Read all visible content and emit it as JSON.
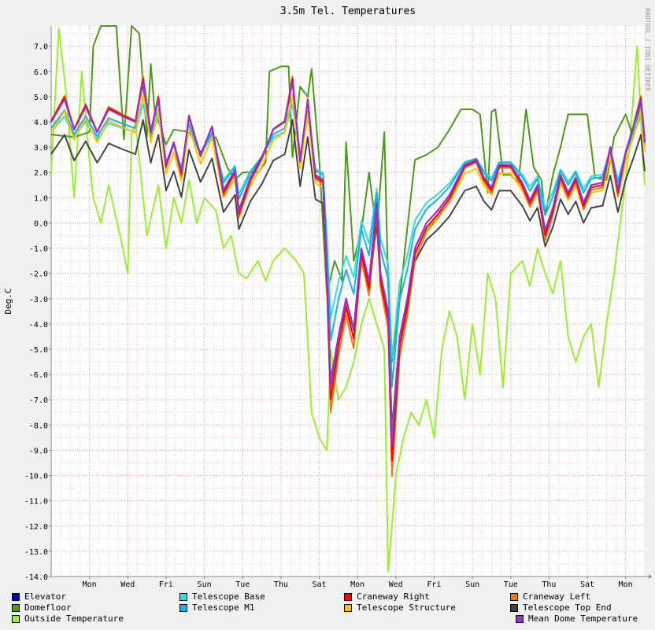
{
  "chart_data": {
    "type": "line",
    "title": "3.5m Tel. Temperatures",
    "ylabel": "Deg.C",
    "side_label": "RRDTOOL / TOBI OETIKER",
    "ylim": [
      -14.0,
      7.8
    ],
    "yticks": [
      "7.0",
      "6.0",
      "5.0",
      "4.0",
      "3.0",
      "2.0",
      "1.0",
      "0.0",
      "-1.0",
      "-2.0",
      "-3.0",
      "-4.0",
      "-5.0",
      "-6.0",
      "-7.0",
      "-8.0",
      "-9.0",
      "-10.0",
      "-11.0",
      "-12.0",
      "-13.0",
      "-14.0"
    ],
    "xlim": [
      0,
      15.5
    ],
    "xticks": [
      {
        "x": 1,
        "label": "Mon"
      },
      {
        "x": 2,
        "label": "Wed"
      },
      {
        "x": 3,
        "label": "Fri"
      },
      {
        "x": 4,
        "label": "Sun"
      },
      {
        "x": 5,
        "label": "Tue"
      },
      {
        "x": 6,
        "label": "Thu"
      },
      {
        "x": 7,
        "label": "Sat"
      },
      {
        "x": 8,
        "label": "Mon"
      },
      {
        "x": 9,
        "label": "Wed"
      },
      {
        "x": 10,
        "label": "Fri"
      },
      {
        "x": 11,
        "label": "Sun"
      },
      {
        "x": 12,
        "label": "Tue"
      },
      {
        "x": 13,
        "label": "Thu"
      },
      {
        "x": 14,
        "label": "Sat"
      },
      {
        "x": 15,
        "label": "Mon"
      }
    ],
    "grid": true,
    "legend_position": "bottom",
    "series": [
      {
        "name": "Elevator",
        "color": "#0000cc",
        "offset": -0.05,
        "amp": 1.0,
        "values": [
          [
            0,
            4.0
          ],
          [
            0.35,
            4.9
          ],
          [
            0.6,
            3.7
          ],
          [
            0.9,
            4.6
          ],
          [
            1.2,
            3.6
          ],
          [
            1.5,
            4.5
          ],
          [
            1.9,
            4.2
          ],
          [
            2.2,
            4.0
          ],
          [
            2.4,
            5.6
          ],
          [
            2.6,
            3.6
          ],
          [
            2.8,
            4.9
          ],
          [
            3.0,
            2.3
          ],
          [
            3.2,
            3.2
          ],
          [
            3.4,
            2.0
          ],
          [
            3.6,
            4.2
          ],
          [
            3.9,
            2.7
          ],
          [
            4.2,
            3.8
          ],
          [
            4.5,
            1.3
          ],
          [
            4.8,
            2.1
          ],
          [
            4.9,
            0.5
          ],
          [
            5.2,
            1.8
          ],
          [
            5.5,
            2.6
          ],
          [
            5.8,
            3.7
          ],
          [
            6.1,
            4.0
          ],
          [
            6.3,
            5.6
          ],
          [
            6.5,
            2.5
          ],
          [
            6.7,
            4.8
          ],
          [
            6.9,
            1.9
          ],
          [
            7.1,
            1.7
          ],
          [
            7.2,
            -2.0
          ],
          [
            7.3,
            -6.5
          ],
          [
            7.5,
            -4.5
          ],
          [
            7.7,
            -3.0
          ],
          [
            7.9,
            -4.2
          ],
          [
            8.1,
            -1.0
          ],
          [
            8.3,
            -2.3
          ],
          [
            8.5,
            0.8
          ],
          [
            8.6,
            -2.0
          ],
          [
            8.8,
            -3.5
          ],
          [
            8.9,
            -8.8
          ],
          [
            9.1,
            -4.5
          ],
          [
            9.3,
            -3.0
          ],
          [
            9.5,
            -1.0
          ],
          [
            9.8,
            0.0
          ],
          [
            10.1,
            0.5
          ],
          [
            10.4,
            1.1
          ],
          [
            10.8,
            2.3
          ],
          [
            11.1,
            2.5
          ],
          [
            11.3,
            1.8
          ],
          [
            11.5,
            1.4
          ],
          [
            11.7,
            2.3
          ],
          [
            12.0,
            2.3
          ],
          [
            12.3,
            1.6
          ],
          [
            12.5,
            0.9
          ],
          [
            12.7,
            1.5
          ],
          [
            12.9,
            -0.3
          ],
          [
            13.1,
            0.6
          ],
          [
            13.3,
            1.9
          ],
          [
            13.5,
            1.2
          ],
          [
            13.7,
            1.8
          ],
          [
            13.9,
            0.8
          ],
          [
            14.1,
            1.5
          ],
          [
            14.4,
            1.6
          ],
          [
            14.6,
            3.0
          ],
          [
            14.8,
            1.3
          ],
          [
            15.0,
            2.8
          ],
          [
            15.2,
            3.8
          ],
          [
            15.4,
            4.9
          ],
          [
            15.6,
            3.2
          ]
        ]
      },
      {
        "name": "Telescope Base",
        "color": "#33dddd",
        "offset": 0.35,
        "amp": 0.7
      },
      {
        "name": "Craneway Right",
        "color": "#ff0000",
        "offset": -0.1,
        "amp": 1.05
      },
      {
        "name": "Craneway Left",
        "color": "#e87a17",
        "offset": -0.2,
        "amp": 1.1
      },
      {
        "name": "Domefloor",
        "color": "#4c9a1a",
        "values": [
          [
            0,
            3.5
          ],
          [
            0.6,
            3.4
          ],
          [
            1.0,
            3.6
          ],
          [
            1.1,
            7.0
          ],
          [
            1.3,
            7.8
          ],
          [
            1.7,
            7.8
          ],
          [
            1.9,
            3.3
          ],
          [
            2.1,
            7.8
          ],
          [
            2.3,
            7.5
          ],
          [
            2.5,
            3.4
          ],
          [
            2.6,
            6.3
          ],
          [
            2.7,
            4.5
          ],
          [
            3.0,
            3.1
          ],
          [
            3.2,
            3.7
          ],
          [
            3.6,
            3.6
          ],
          [
            3.9,
            2.8
          ],
          [
            4.1,
            3.2
          ],
          [
            4.3,
            3.4
          ],
          [
            4.6,
            2.2
          ],
          [
            4.8,
            1.7
          ],
          [
            5.0,
            2.0
          ],
          [
            5.4,
            2.0
          ],
          [
            5.6,
            2.4
          ],
          [
            5.7,
            6.0
          ],
          [
            6.0,
            6.2
          ],
          [
            6.2,
            6.2
          ],
          [
            6.3,
            2.6
          ],
          [
            6.5,
            5.4
          ],
          [
            6.7,
            5.0
          ],
          [
            6.8,
            6.1
          ],
          [
            7.0,
            2.5
          ],
          [
            7.2,
            -2.8
          ],
          [
            7.4,
            -1.5
          ],
          [
            7.6,
            -2.3
          ],
          [
            7.7,
            3.2
          ],
          [
            7.9,
            -1.5
          ],
          [
            8.1,
            -0.3
          ],
          [
            8.3,
            2.0
          ],
          [
            8.5,
            -0.4
          ],
          [
            8.7,
            3.6
          ],
          [
            8.8,
            -2.5
          ],
          [
            8.9,
            -5.5
          ],
          [
            9.1,
            -3.0
          ],
          [
            9.3,
            -0.2
          ],
          [
            9.5,
            2.5
          ],
          [
            9.8,
            2.7
          ],
          [
            10.1,
            3.0
          ],
          [
            10.4,
            3.7
          ],
          [
            10.7,
            4.5
          ],
          [
            11.0,
            4.5
          ],
          [
            11.2,
            4.3
          ],
          [
            11.4,
            1.2
          ],
          [
            11.5,
            4.4
          ],
          [
            11.6,
            4.5
          ],
          [
            11.8,
            1.9
          ],
          [
            12.0,
            1.9
          ],
          [
            12.2,
            1.6
          ],
          [
            12.4,
            4.5
          ],
          [
            12.6,
            2.2
          ],
          [
            12.8,
            1.7
          ],
          [
            12.9,
            0.3
          ],
          [
            13.1,
            1.9
          ],
          [
            13.3,
            3.0
          ],
          [
            13.5,
            4.3
          ],
          [
            13.8,
            4.3
          ],
          [
            14.0,
            4.3
          ],
          [
            14.2,
            1.8
          ],
          [
            14.5,
            1.7
          ],
          [
            14.7,
            3.4
          ],
          [
            15.0,
            4.3
          ],
          [
            15.2,
            3.4
          ],
          [
            15.4,
            4.8
          ],
          [
            15.6,
            3.4
          ]
        ]
      },
      {
        "name": "Telescope M1",
        "color": "#1ab0e8",
        "offset": 0.25,
        "amp": 0.8
      },
      {
        "name": "Telescope Structure",
        "color": "#ffc000",
        "offset": -0.3,
        "amp": 0.95
      },
      {
        "name": "Telescope Top End",
        "color": "#444444",
        "offset": -0.9,
        "amp": 0.85
      },
      {
        "name": "Outside Temperature",
        "color": "#99ee33",
        "values": [
          [
            0,
            2.0
          ],
          [
            0.2,
            7.7
          ],
          [
            0.4,
            5.0
          ],
          [
            0.6,
            1.0
          ],
          [
            0.8,
            6.0
          ],
          [
            1.0,
            2.5
          ],
          [
            1.1,
            1.0
          ],
          [
            1.3,
            0.0
          ],
          [
            1.5,
            1.5
          ],
          [
            1.8,
            -0.5
          ],
          [
            2.0,
            -2.0
          ],
          [
            2.1,
            3.5
          ],
          [
            2.2,
            4.0
          ],
          [
            2.5,
            -0.5
          ],
          [
            2.8,
            1.5
          ],
          [
            3.0,
            -1.0
          ],
          [
            3.2,
            1.0
          ],
          [
            3.4,
            0.0
          ],
          [
            3.6,
            1.7
          ],
          [
            3.8,
            0.0
          ],
          [
            4.0,
            1.0
          ],
          [
            4.3,
            0.5
          ],
          [
            4.5,
            -1.0
          ],
          [
            4.7,
            -0.5
          ],
          [
            4.9,
            -2.0
          ],
          [
            5.1,
            -2.2
          ],
          [
            5.4,
            -1.5
          ],
          [
            5.6,
            -2.3
          ],
          [
            5.8,
            -1.5
          ],
          [
            6.1,
            -1.0
          ],
          [
            6.4,
            -1.5
          ],
          [
            6.6,
            -2.0
          ],
          [
            6.8,
            -7.5
          ],
          [
            7.0,
            -8.5
          ],
          [
            7.2,
            -9.0
          ],
          [
            7.3,
            -5.0
          ],
          [
            7.5,
            -7.0
          ],
          [
            7.7,
            -6.5
          ],
          [
            7.9,
            -5.5
          ],
          [
            8.1,
            -4.0
          ],
          [
            8.3,
            -3.0
          ],
          [
            8.5,
            -4.0
          ],
          [
            8.7,
            -5.0
          ],
          [
            8.8,
            -13.8
          ],
          [
            8.9,
            -12.0
          ],
          [
            9.0,
            -10.0
          ],
          [
            9.2,
            -8.5
          ],
          [
            9.4,
            -7.5
          ],
          [
            9.6,
            -8.0
          ],
          [
            9.8,
            -7.0
          ],
          [
            10.0,
            -8.5
          ],
          [
            10.2,
            -5.0
          ],
          [
            10.4,
            -3.5
          ],
          [
            10.6,
            -4.5
          ],
          [
            10.8,
            -7.0
          ],
          [
            11.0,
            -4.0
          ],
          [
            11.2,
            -6.0
          ],
          [
            11.4,
            -2.0
          ],
          [
            11.6,
            -3.0
          ],
          [
            11.8,
            -6.5
          ],
          [
            12.0,
            -2.0
          ],
          [
            12.3,
            -1.5
          ],
          [
            12.5,
            -2.5
          ],
          [
            12.7,
            -1.0
          ],
          [
            12.9,
            -2.0
          ],
          [
            13.1,
            -2.8
          ],
          [
            13.3,
            -1.5
          ],
          [
            13.5,
            -4.5
          ],
          [
            13.7,
            -5.5
          ],
          [
            13.9,
            -4.5
          ],
          [
            14.1,
            -4.0
          ],
          [
            14.3,
            -6.5
          ],
          [
            14.5,
            -4.0
          ],
          [
            14.7,
            -2.0
          ],
          [
            14.9,
            0.5
          ],
          [
            15.1,
            3.0
          ],
          [
            15.3,
            7.0
          ],
          [
            15.45,
            2.5
          ],
          [
            15.6,
            1.5
          ]
        ]
      },
      {
        "name": "Mean Dome Temperature",
        "color": "#9933cc",
        "offset": 0.0,
        "amp": 1.0
      }
    ]
  },
  "legend": [
    {
      "label": "Elevator",
      "color": "#0000cc"
    },
    {
      "label": "Telescope Base",
      "color": "#33dddd"
    },
    {
      "label": "Craneway Right",
      "color": "#ff0000"
    },
    {
      "label": "Craneway Left",
      "color": "#e87a17"
    },
    {
      "label": "Domefloor",
      "color": "#4c9a1a"
    },
    {
      "label": "Telescope M1",
      "color": "#1ab0e8"
    },
    {
      "label": "Telescope Structure",
      "color": "#ffc000"
    },
    {
      "label": "Telescope Top End",
      "color": "#444444"
    },
    {
      "label": "Outside Temperature",
      "color": "#99ee33"
    },
    {
      "label": "Mean Dome Temperature",
      "color": "#9933cc"
    }
  ]
}
